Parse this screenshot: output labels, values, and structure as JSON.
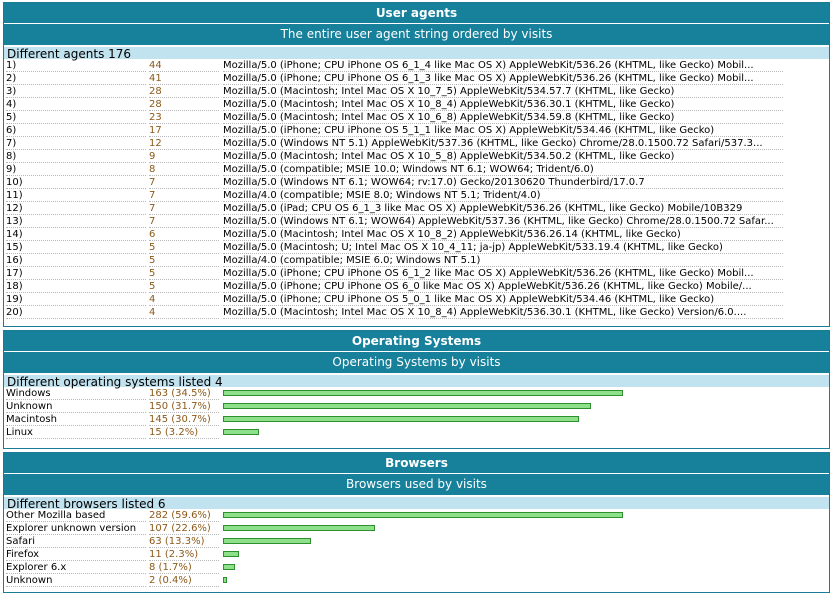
{
  "user_agents": {
    "title": "User agents",
    "subtitle": "The entire user agent string ordered by visits",
    "count_label": "Different agents 176",
    "rows": [
      {
        "rank": "1)",
        "visits": "44",
        "agent": "Mozilla/5.0 (iPhone; CPU iPhone OS 6_1_4 like Mac OS X) AppleWebKit/536.26 (KHTML, like Gecko) Mobil..."
      },
      {
        "rank": "2)",
        "visits": "41",
        "agent": "Mozilla/5.0 (iPhone; CPU iPhone OS 6_1_3 like Mac OS X) AppleWebKit/536.26 (KHTML, like Gecko) Mobil..."
      },
      {
        "rank": "3)",
        "visits": "28",
        "agent": "Mozilla/5.0 (Macintosh; Intel Mac OS X 10_7_5) AppleWebKit/534.57.7 (KHTML, like Gecko)"
      },
      {
        "rank": "4)",
        "visits": "28",
        "agent": "Mozilla/5.0 (Macintosh; Intel Mac OS X 10_8_4) AppleWebKit/536.30.1 (KHTML, like Gecko)"
      },
      {
        "rank": "5)",
        "visits": "23",
        "agent": "Mozilla/5.0 (Macintosh; Intel Mac OS X 10_6_8) AppleWebKit/534.59.8 (KHTML, like Gecko)"
      },
      {
        "rank": "6)",
        "visits": "17",
        "agent": "Mozilla/5.0 (iPhone; CPU iPhone OS 5_1_1 like Mac OS X) AppleWebKit/534.46 (KHTML, like Gecko)"
      },
      {
        "rank": "7)",
        "visits": "12",
        "agent": "Mozilla/5.0 (Windows NT 5.1) AppleWebKit/537.36 (KHTML, like Gecko) Chrome/28.0.1500.72 Safari/537.3..."
      },
      {
        "rank": "8)",
        "visits": "9",
        "agent": "Mozilla/5.0 (Macintosh; Intel Mac OS X 10_5_8) AppleWebKit/534.50.2 (KHTML, like Gecko)"
      },
      {
        "rank": "9)",
        "visits": "8",
        "agent": "Mozilla/5.0 (compatible; MSIE 10.0; Windows NT 6.1; WOW64; Trident/6.0)"
      },
      {
        "rank": "10)",
        "visits": "7",
        "agent": "Mozilla/5.0 (Windows NT 6.1; WOW64; rv:17.0) Gecko/20130620 Thunderbird/17.0.7"
      },
      {
        "rank": "11)",
        "visits": "7",
        "agent": "Mozilla/4.0 (compatible; MSIE 8.0; Windows NT 5.1; Trident/4.0)"
      },
      {
        "rank": "12)",
        "visits": "7",
        "agent": "Mozilla/5.0 (iPad; CPU OS 6_1_3 like Mac OS X) AppleWebKit/536.26 (KHTML, like Gecko) Mobile/10B329"
      },
      {
        "rank": "13)",
        "visits": "7",
        "agent": "Mozilla/5.0 (Windows NT 6.1; WOW64) AppleWebKit/537.36 (KHTML, like Gecko) Chrome/28.0.1500.72 Safar..."
      },
      {
        "rank": "14)",
        "visits": "6",
        "agent": "Mozilla/5.0 (Macintosh; Intel Mac OS X 10_8_2) AppleWebKit/536.26.14 (KHTML, like Gecko)"
      },
      {
        "rank": "15)",
        "visits": "5",
        "agent": "Mozilla/5.0 (Macintosh; U; Intel Mac OS X 10_4_11; ja-jp) AppleWebKit/533.19.4 (KHTML, like Gecko)"
      },
      {
        "rank": "16)",
        "visits": "5",
        "agent": "Mozilla/4.0 (compatible; MSIE 6.0; Windows NT 5.1)"
      },
      {
        "rank": "17)",
        "visits": "5",
        "agent": "Mozilla/5.0 (iPhone; CPU iPhone OS 6_1_2 like Mac OS X) AppleWebKit/536.26 (KHTML, like Gecko) Mobil..."
      },
      {
        "rank": "18)",
        "visits": "5",
        "agent": "Mozilla/5.0 (iPhone; CPU iPhone OS 6_0 like Mac OS X) AppleWebKit/536.26 (KHTML, like Gecko) Mobile/..."
      },
      {
        "rank": "19)",
        "visits": "4",
        "agent": "Mozilla/5.0 (iPhone; CPU iPhone OS 5_0_1 like Mac OS X) AppleWebKit/534.46 (KHTML, like Gecko)"
      },
      {
        "rank": "20)",
        "visits": "4",
        "agent": "Mozilla/5.0 (Macintosh; Intel Mac OS X 10_8_4) AppleWebKit/536.30.1 (KHTML, like Gecko) Version/6.0...."
      }
    ]
  },
  "operating_systems": {
    "title": "Operating Systems",
    "subtitle": "Operating Systems by visits",
    "count_label": "Different operating systems listed 4",
    "rows": [
      {
        "name": "Windows",
        "value": "163 (34.5%)",
        "fraction": 1.0
      },
      {
        "name": "Unknown",
        "value": "150 (31.7%)",
        "fraction": 0.92
      },
      {
        "name": "Macintosh",
        "value": "145 (30.7%)",
        "fraction": 0.89
      },
      {
        "name": "Linux",
        "value": "15 (3.2%)",
        "fraction": 0.09
      }
    ]
  },
  "browsers": {
    "title": "Browsers",
    "subtitle": "Browsers used by visits",
    "count_label": "Different browsers listed 6",
    "rows": [
      {
        "name": "Other Mozilla based",
        "value": "282 (59.6%)",
        "fraction": 1.0
      },
      {
        "name": "Explorer unknown version",
        "value": "107 (22.6%)",
        "fraction": 0.38
      },
      {
        "name": "Safari",
        "value": "63 (13.3%)",
        "fraction": 0.22
      },
      {
        "name": "Firefox",
        "value": "11 (2.3%)",
        "fraction": 0.04
      },
      {
        "name": "Explorer 6.x",
        "value": "8 (1.7%)",
        "fraction": 0.03
      },
      {
        "name": "Unknown",
        "value": "2 (0.4%)",
        "fraction": 0.01
      }
    ]
  }
}
